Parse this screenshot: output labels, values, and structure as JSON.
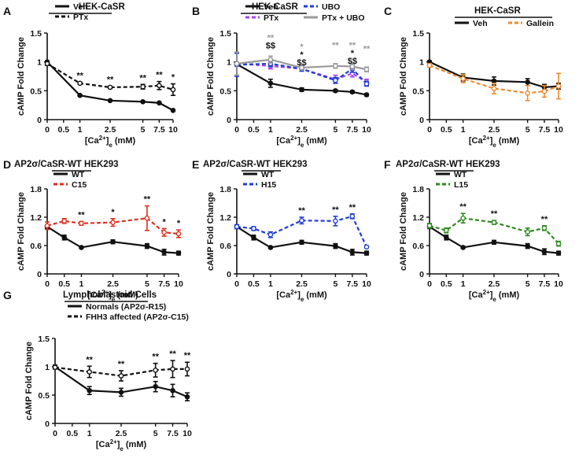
{
  "colors": {
    "black": "#111111",
    "purple": "#a546e6",
    "blue": "#1f3fd6",
    "gray": "#9a9a9a",
    "orange": "#f08a2e",
    "red": "#e0301e",
    "green": "#2e8a1f"
  },
  "chart_data": [
    {
      "id": "A",
      "letter": "A",
      "title": "HEK-CaSR",
      "type": "line",
      "ylabel": "cAMP Fold Change",
      "xlabel_pre": "[Ca",
      "xlabel_sup": "2+",
      "xlabel_post": "]",
      "xlabel_sub": "e",
      "xlabel_unit": " (mM)",
      "ylim": [
        0,
        1.5
      ],
      "yticks": [
        "0",
        "0.5",
        "1",
        "1.5"
      ],
      "xticks": [
        "0",
        "0.5",
        "1",
        "2.5",
        "5",
        "7.5",
        "10"
      ],
      "x": [
        0,
        1,
        2.5,
        5,
        7.5,
        10
      ],
      "series": [
        {
          "name": "Veh",
          "color": "black",
          "dash": false,
          "marker": "filled",
          "values": [
            1.0,
            0.42,
            0.33,
            0.31,
            0.29,
            0.16
          ],
          "err": [
            0.02,
            0.01,
            0.01,
            0.01,
            0.01,
            0.01
          ]
        },
        {
          "name": "PTx",
          "color": "black",
          "dash": true,
          "marker": "open",
          "values": [
            0.97,
            0.63,
            0.56,
            0.57,
            0.59,
            0.52
          ],
          "err": [
            0.03,
            0.02,
            0.02,
            0.04,
            0.07,
            0.1
          ]
        }
      ],
      "annotations": [
        {
          "x": 1,
          "text": "**"
        },
        {
          "x": 2.5,
          "text": "**"
        },
        {
          "x": 5,
          "text": "**"
        },
        {
          "x": 7.5,
          "text": "**"
        },
        {
          "x": 10,
          "text": "*"
        }
      ]
    },
    {
      "id": "B",
      "letter": "B",
      "title": "HEK-CaSR",
      "type": "line",
      "ylabel": "cAMP Fold Change",
      "xlabel_pre": "[Ca",
      "xlabel_sup": "2+",
      "xlabel_post": "]",
      "xlabel_sub": "e",
      "xlabel_unit": " (mM)",
      "ylim": [
        0,
        1.5
      ],
      "yticks": [
        "0",
        "0.5",
        "1",
        "1.5"
      ],
      "xticks": [
        "0",
        "0.5",
        "1",
        "2.5",
        "5",
        "7.5",
        "10"
      ],
      "x": [
        0,
        1,
        2.5,
        5,
        7.5,
        10
      ],
      "series": [
        {
          "name": "Veh",
          "color": "black",
          "dash": false,
          "marker": "filled",
          "values": [
            0.96,
            0.63,
            0.52,
            0.5,
            0.48,
            0.43
          ],
          "err": [
            0.03,
            0.07,
            0.03,
            0.02,
            0.02,
            0.02
          ]
        },
        {
          "name": "PTx",
          "color": "purple",
          "dash": true,
          "marker": "open",
          "values": [
            0.97,
            0.93,
            0.88,
            0.7,
            0.8,
            0.65
          ],
          "err": [
            0.2,
            0.05,
            0.04,
            0.07,
            0.06,
            0.05
          ]
        },
        {
          "name": "UBO",
          "color": "blue",
          "dash": true,
          "marker": "open",
          "values": [
            0.95,
            0.97,
            0.88,
            0.68,
            0.88,
            0.62
          ],
          "err": [
            0.2,
            0.05,
            0.04,
            0.05,
            0.06,
            0.04
          ]
        },
        {
          "name": "PTx + UBO",
          "color": "gray",
          "dash": false,
          "marker": "open",
          "values": [
            0.97,
            1.04,
            0.9,
            0.93,
            0.92,
            0.87
          ],
          "err": [
            0.2,
            0.06,
            0.04,
            0.04,
            0.05,
            0.04
          ]
        }
      ],
      "annotations": [
        {
          "x": 1,
          "text": "**",
          "row": 0,
          "color": "gray"
        },
        {
          "x": 1,
          "text": "$$",
          "row": 1,
          "color": "black"
        },
        {
          "x": 2.5,
          "text": "*",
          "row": 0,
          "color": "gray"
        },
        {
          "x": 2.5,
          "text": "*",
          "row": 1,
          "color": "black"
        },
        {
          "x": 2.5,
          "text": "$$",
          "row": 2,
          "color": "black"
        },
        {
          "x": 5,
          "text": "**",
          "row": 0,
          "color": "gray"
        },
        {
          "x": 7.5,
          "text": "**",
          "row": 0,
          "color": "gray"
        },
        {
          "x": 7.5,
          "text": "*",
          "row": 1,
          "color": "black"
        },
        {
          "x": 7.5,
          "text": "$$",
          "row": 2,
          "color": "black"
        },
        {
          "x": 10,
          "text": "**",
          "row": 0,
          "color": "gray"
        }
      ]
    },
    {
      "id": "C",
      "letter": "C",
      "title": "HEK-CaSR",
      "type": "line",
      "ylabel": "cAMP Fold Change",
      "xlabel_pre": "[Ca",
      "xlabel_sup": "2+",
      "xlabel_post": "]",
      "xlabel_sub": "e",
      "xlabel_unit": " (mM)",
      "ylim": [
        0,
        1.5
      ],
      "yticks": [
        "0",
        "0.5",
        "1",
        "1.5"
      ],
      "xticks": [
        "0",
        "0.5",
        "1",
        "2.5",
        "5",
        "7.5",
        "10"
      ],
      "x": [
        0,
        1,
        2.5,
        5,
        7.5,
        10
      ],
      "series": [
        {
          "name": "Veh",
          "color": "black",
          "dash": false,
          "marker": "filled",
          "values": [
            1.0,
            0.73,
            0.67,
            0.65,
            0.56,
            0.58
          ],
          "err": [
            0.02,
            0.06,
            0.07,
            0.06,
            0.05,
            0.05
          ]
        },
        {
          "name": "Gallein",
          "color": "orange",
          "dash": true,
          "marker": "open",
          "values": [
            0.94,
            0.71,
            0.54,
            0.46,
            0.49,
            0.58
          ],
          "err": [
            0.03,
            0.07,
            0.09,
            0.13,
            0.1,
            0.22
          ]
        }
      ],
      "annotations": []
    },
    {
      "id": "D",
      "letter": "D",
      "title": "AP2σ/CaSR-WT HEK293",
      "type": "line",
      "ylabel": "cAMP Fold Change",
      "xlabel_pre": "[Ca",
      "xlabel_sup": "2+",
      "xlabel_post": "]",
      "xlabel_sub": "e",
      "xlabel_unit": " (mM)",
      "ylim": [
        0,
        1.8
      ],
      "yticks": [
        "0",
        "0.6",
        "1.2",
        "1.8"
      ],
      "xticks": [
        "0",
        "0.5",
        "1",
        "2.5",
        "5",
        "7.5",
        "10"
      ],
      "x": [
        0,
        0.5,
        1,
        2.5,
        5,
        7.5,
        10
      ],
      "series": [
        {
          "name": "WT",
          "color": "black",
          "dash": false,
          "marker": "filled",
          "values": [
            1.0,
            0.77,
            0.56,
            0.68,
            0.59,
            0.46,
            0.44
          ],
          "err": [
            0.04,
            0.05,
            0.02,
            0.04,
            0.05,
            0.06,
            0.04
          ]
        },
        {
          "name": "C15",
          "color": "red",
          "dash": true,
          "marker": "open",
          "values": [
            1.02,
            1.12,
            1.07,
            1.09,
            1.18,
            0.88,
            0.85
          ],
          "err": [
            0.08,
            0.05,
            0.04,
            0.08,
            0.26,
            0.08,
            0.08
          ]
        }
      ],
      "annotations": [
        {
          "x": 1,
          "text": "**"
        },
        {
          "x": 2.5,
          "text": "*"
        },
        {
          "x": 5,
          "text": "**"
        },
        {
          "x": 7.5,
          "text": "*"
        },
        {
          "x": 10,
          "text": "*"
        }
      ]
    },
    {
      "id": "E",
      "letter": "E",
      "title": "AP2σ/CaSR-WT HEK293",
      "type": "line",
      "ylabel": "cAMP Fold Change",
      "xlabel_pre": "[Ca",
      "xlabel_sup": "2+",
      "xlabel_post": "]",
      "xlabel_sub": "e",
      "xlabel_unit": " (mM)",
      "ylim": [
        0,
        1.8
      ],
      "yticks": [
        "0",
        "0.6",
        "1.2",
        "1.8"
      ],
      "xticks": [
        "0",
        "0.5",
        "1",
        "2.5",
        "5",
        "7.5",
        "10"
      ],
      "x": [
        0,
        0.5,
        1,
        2.5,
        5,
        7.5,
        10
      ],
      "series": [
        {
          "name": "WT",
          "color": "black",
          "dash": false,
          "marker": "filled",
          "values": [
            1.0,
            0.77,
            0.56,
            0.67,
            0.59,
            0.46,
            0.44
          ],
          "err": [
            0.04,
            0.05,
            0.02,
            0.04,
            0.05,
            0.06,
            0.04
          ]
        },
        {
          "name": "H15",
          "color": "blue",
          "dash": true,
          "marker": "open",
          "values": [
            1.0,
            0.96,
            0.83,
            1.13,
            1.12,
            1.22,
            0.57
          ],
          "err": [
            0.04,
            0.04,
            0.06,
            0.07,
            0.1,
            0.05,
            0.02
          ]
        }
      ],
      "annotations": [
        {
          "x": 2.5,
          "text": "**"
        },
        {
          "x": 5,
          "text": "**"
        },
        {
          "x": 7.5,
          "text": "**"
        }
      ]
    },
    {
      "id": "F",
      "letter": "F",
      "title": "AP2σ/CaSR-WT HEK293",
      "type": "line",
      "ylabel": "cAMP Fold Change",
      "xlabel_pre": "[Ca",
      "xlabel_sup": "2+",
      "xlabel_post": "]",
      "xlabel_sub": "e",
      "xlabel_unit": " (mM)",
      "ylim": [
        0,
        1.8
      ],
      "yticks": [
        "0",
        "0.6",
        "1.2",
        "1.8"
      ],
      "xticks": [
        "0",
        "0.5",
        "1",
        "2.5",
        "5",
        "7.5",
        "10"
      ],
      "x": [
        0,
        0.5,
        1,
        2.5,
        5,
        7.5,
        10
      ],
      "series": [
        {
          "name": "WT",
          "color": "black",
          "dash": false,
          "marker": "filled",
          "values": [
            1.0,
            0.77,
            0.56,
            0.67,
            0.59,
            0.47,
            0.44
          ],
          "err": [
            0.04,
            0.05,
            0.02,
            0.04,
            0.05,
            0.06,
            0.04
          ]
        },
        {
          "name": "L15",
          "color": "green",
          "dash": true,
          "marker": "open",
          "values": [
            1.02,
            0.92,
            1.18,
            1.09,
            0.89,
            0.97,
            0.64
          ],
          "err": [
            0.05,
            0.05,
            0.1,
            0.04,
            0.08,
            0.05,
            0.05
          ]
        }
      ],
      "annotations": [
        {
          "x": 1,
          "text": "**"
        },
        {
          "x": 2.5,
          "text": "**"
        },
        {
          "x": 7.5,
          "text": "**"
        }
      ]
    },
    {
      "id": "G",
      "letter": "G",
      "title": "Lymphoblastoid Cells",
      "type": "line",
      "ylabel": "cAMP Fold Change",
      "xlabel_pre": "[Ca",
      "xlabel_sup": "2+",
      "xlabel_post": "]",
      "xlabel_sub": "e",
      "xlabel_unit": " (mM)",
      "ylim": [
        0,
        1.5
      ],
      "yticks": [
        "0",
        "0.5",
        "1",
        "1.5"
      ],
      "xticks": [
        "0",
        "0.5",
        "1",
        "2.5",
        "5",
        "7.5",
        "10"
      ],
      "x": [
        0,
        1,
        2.5,
        5,
        7.5,
        10
      ],
      "series": [
        {
          "name": "Normals (AP2σ-R15)",
          "color": "black",
          "dash": false,
          "marker": "filled",
          "values": [
            1.0,
            0.58,
            0.55,
            0.65,
            0.58,
            0.47
          ],
          "err": [
            0.03,
            0.07,
            0.07,
            0.09,
            0.11,
            0.07
          ]
        },
        {
          "name": "FHH3 affected (AP2σ-C15)",
          "color": "black",
          "dash": true,
          "marker": "open",
          "values": [
            0.99,
            0.91,
            0.84,
            0.94,
            0.96,
            0.96
          ],
          "err": [
            0.03,
            0.1,
            0.09,
            0.12,
            0.15,
            0.12
          ]
        }
      ],
      "annotations": [
        {
          "x": 1,
          "text": "**"
        },
        {
          "x": 2.5,
          "text": "**"
        },
        {
          "x": 5,
          "text": "**"
        },
        {
          "x": 7.5,
          "text": "**"
        },
        {
          "x": 10,
          "text": "**"
        }
      ]
    }
  ]
}
